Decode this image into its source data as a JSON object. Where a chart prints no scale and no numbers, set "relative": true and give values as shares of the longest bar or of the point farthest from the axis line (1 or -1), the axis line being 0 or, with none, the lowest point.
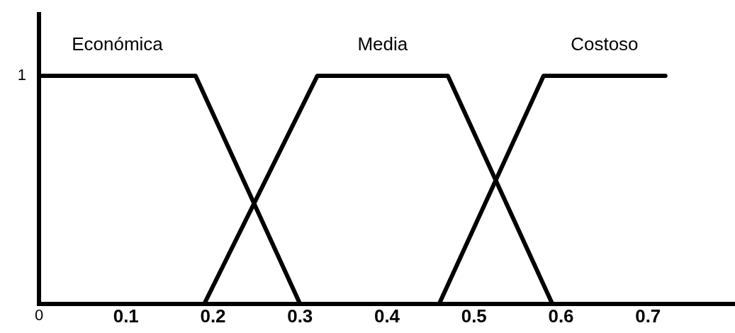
{
  "chart_data": {
    "type": "line",
    "relative": true,
    "series": [
      {
        "name": "Económica",
        "color": "#000000",
        "x": [
          0,
          0.18,
          0.3
        ],
        "values": [
          1,
          1,
          0
        ]
      },
      {
        "name": "Media",
        "color": "#000000",
        "x": [
          0.19,
          0.32,
          0.47,
          0.59
        ],
        "values": [
          0,
          1,
          1,
          0
        ]
      },
      {
        "name": "Costoso",
        "color": "#000000",
        "x": [
          0.46,
          0.58,
          0.72
        ],
        "values": [
          0,
          1,
          1
        ]
      }
    ],
    "xlim": [
      0,
      0.8
    ],
    "xticks": [
      0.1,
      0.2,
      0.3,
      0.4,
      0.5,
      0.6,
      0.7
    ],
    "annotations": [
      "1",
      "0"
    ],
    "grid": false,
    "legend": false,
    "marker": "none",
    "line_style": "solid"
  }
}
